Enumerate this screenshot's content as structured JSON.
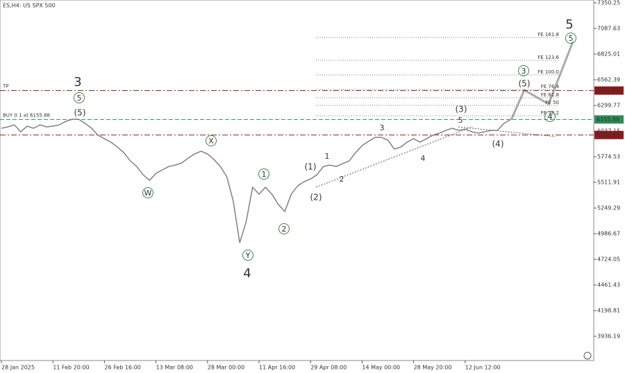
{
  "chart_data": {
    "type": "line",
    "title": "ES,H4: US SPX 500",
    "categories": [
      "28 Jan 2025",
      null,
      null,
      null,
      null,
      null,
      null,
      null,
      "11 Feb 20:00",
      null,
      null,
      null,
      null,
      null,
      null,
      null,
      "26 Feb 16:00",
      null,
      null,
      null,
      null,
      null,
      null,
      null,
      "13 Mar 08:00",
      null,
      null,
      null,
      null,
      null,
      null,
      null,
      "28 Mar 00:00",
      null,
      null,
      null,
      null,
      null,
      null,
      null,
      "11 Apr 16:00",
      null,
      null,
      null,
      null,
      null,
      null,
      null,
      "29 Apr 08:00",
      null,
      null,
      null,
      null,
      null,
      null,
      null,
      "14 May 00:00",
      null,
      null,
      null,
      null,
      null,
      null,
      null,
      "28 May 20:00",
      null,
      null,
      null,
      null,
      null,
      null,
      null,
      "12 Jun 12:00",
      null,
      null,
      null,
      null,
      null,
      null,
      null,
      null,
      null,
      null,
      null,
      null,
      null,
      null,
      null,
      null,
      null,
      null,
      null
    ],
    "series": [
      {
        "name": "ES",
        "color": "#808080",
        "values": [
          6066,
          6080,
          6101,
          6030,
          6087,
          6066,
          6101,
          6080,
          6087,
          6101,
          6136,
          6158,
          6158,
          6115,
          6066,
          5995,
          5959,
          5924,
          5874,
          5817,
          5732,
          5675,
          5590,
          5533,
          5604,
          5640,
          5675,
          5689,
          5711,
          5760,
          5803,
          5831,
          5803,
          5746,
          5675,
          5569,
          5320,
          4894,
          5107,
          5462,
          5391,
          5462,
          5391,
          5285,
          5214,
          5391,
          5476,
          5519,
          5547,
          5590,
          5675,
          5689,
          5675,
          5704,
          5732,
          5817,
          5888,
          5931,
          5973,
          5973,
          5945,
          5853,
          5874,
          5924,
          5959,
          5924,
          5959,
          5995,
          6016,
          6044,
          6066,
          6044,
          6058,
          6030,
          6016,
          6030,
          6044,
          6044,
          6115,
          6151,
          null,
          null,
          null,
          null,
          null,
          null,
          null,
          null,
          null,
          null,
          null,
          null
        ]
      }
    ],
    "ylim": [
      3688,
      7379
    ],
    "yticks": [
      7350.25,
      7087.63,
      6825.01,
      6562.39,
      6299.77,
      6037.15,
      5774.53,
      5511.91,
      5249.29,
      4986.67,
      4724.05,
      4461.43,
      4198.81,
      3936.19
    ],
    "levels": [
      {
        "name": "TP",
        "value": 6451.81,
        "color": "#8b1a1a"
      },
      {
        "name": "BUY 0.1 at 6155.88",
        "value": 6155.88,
        "color": "#2e8b57"
      },
      {
        "value": 5996.68,
        "color": "#8b1a1a"
      }
    ],
    "fib_labels": [
      "FE 161.8",
      "FE 123.6",
      "FE 100.0",
      "FE 76.4",
      "FE 61.8",
      "FE 50",
      "FE 38.2"
    ],
    "wave_labels": [
      {
        "text": "3",
        "style": "big"
      },
      {
        "text": "5",
        "style": "circle"
      },
      {
        "text": "(5)",
        "style": "paren"
      },
      {
        "text": "W",
        "style": "circle"
      },
      {
        "text": "X",
        "style": "circle"
      },
      {
        "text": "Y",
        "style": "circle"
      },
      {
        "text": "4",
        "style": "big"
      },
      {
        "text": "1",
        "style": "circle"
      },
      {
        "text": "2",
        "style": "circle"
      },
      {
        "text": "(1)",
        "style": "paren"
      },
      {
        "text": "(2)",
        "style": "paren"
      },
      {
        "text": "1",
        "style": "small"
      },
      {
        "text": "2",
        "style": "small"
      },
      {
        "text": "3",
        "style": "small"
      },
      {
        "text": "4",
        "style": "small"
      },
      {
        "text": "5",
        "style": "small"
      },
      {
        "text": "(3)",
        "style": "paren"
      },
      {
        "text": "(4)",
        "style": "paren"
      },
      {
        "text": "(5)",
        "style": "paren"
      },
      {
        "text": "3",
        "style": "circle"
      },
      {
        "text": "4",
        "style": "circle"
      },
      {
        "text": "5",
        "style": "circle"
      },
      {
        "text": "5",
        "style": "big"
      }
    ]
  }
}
